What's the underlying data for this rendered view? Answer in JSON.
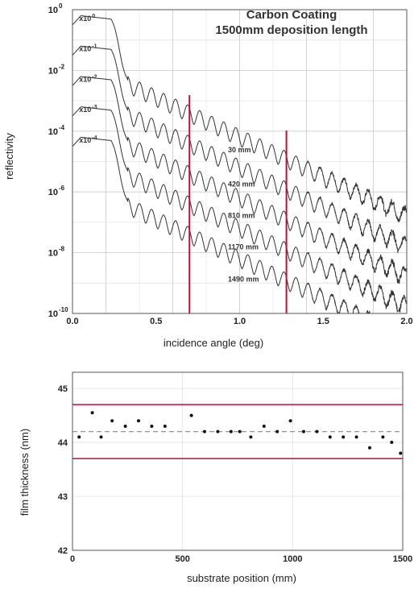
{
  "colors": {
    "curve": "#333333",
    "limit": "#b0163a",
    "mean": "#888888",
    "point": "#111111"
  },
  "chart_data": [
    {
      "type": "line",
      "title": "Carbon Coating",
      "subtitle": "1500mm deposition length",
      "xlabel": "incidence angle (deg)",
      "ylabel": "reflectivity",
      "xlim": [
        0.0,
        2.0
      ],
      "ylim": [
        1e-10,
        1
      ],
      "yscale": "log",
      "xticks": [
        "0.0",
        "0.5",
        "1.0",
        "1.5",
        "2.0"
      ],
      "ytick_mantissa": [
        "10",
        "10",
        "10",
        "10",
        "10",
        "10"
      ],
      "ytick_exponents": [
        "0",
        "-2",
        "-4",
        "-6",
        "-8",
        "-10"
      ],
      "ytick_values": [
        1,
        0.01,
        0.0001,
        1e-06,
        1e-08,
        1e-10
      ],
      "grid": true,
      "vlines_x": [
        0.7,
        1.28
      ],
      "scale_factor_base": "x10",
      "series": [
        {
          "scale_exp": "0",
          "scale_value": 1,
          "name": "30 mm",
          "label_x": 0.93,
          "label_y": 2e-05
        },
        {
          "scale_exp": "-1",
          "scale_value": 0.1,
          "name": "420 mm",
          "label_x": 0.93,
          "label_y": 1.5e-06
        },
        {
          "scale_exp": "-2",
          "scale_value": 0.01,
          "name": "810 mm",
          "label_x": 0.93,
          "label_y": 1.4e-07
        },
        {
          "scale_exp": "-3",
          "scale_value": 0.001,
          "name": "1170 mm",
          "label_x": 0.93,
          "label_y": 1.3e-08
        },
        {
          "scale_exp": "-4",
          "scale_value": 0.0001,
          "name": "1490 mm",
          "label_x": 0.93,
          "label_y": 1.1e-09
        }
      ],
      "curve_shape": {
        "plateau_end_deg": 0.23,
        "edge_end_deg": 0.33,
        "fringe_period_deg": 0.072,
        "decay_decades_per_deg": 2.6
      }
    },
    {
      "type": "scatter",
      "xlabel": "substrate position (mm)",
      "ylabel": "film thickness (nm)",
      "xlim": [
        0,
        1500
      ],
      "ylim": [
        42,
        45.3
      ],
      "xticks": [
        0,
        500,
        1000,
        1500
      ],
      "yticks": [
        42,
        43,
        44,
        45
      ],
      "upper_limit": 44.7,
      "lower_limit": 43.7,
      "mean": 44.2,
      "points": [
        [
          30,
          44.1
        ],
        [
          90,
          44.55
        ],
        [
          130,
          44.1
        ],
        [
          180,
          44.4
        ],
        [
          240,
          44.3
        ],
        [
          300,
          44.4
        ],
        [
          360,
          44.3
        ],
        [
          420,
          44.3
        ],
        [
          540,
          44.5
        ],
        [
          600,
          44.2
        ],
        [
          660,
          44.2
        ],
        [
          720,
          44.2
        ],
        [
          760,
          44.2
        ],
        [
          810,
          44.1
        ],
        [
          870,
          44.3
        ],
        [
          930,
          44.2
        ],
        [
          990,
          44.4
        ],
        [
          1050,
          44.2
        ],
        [
          1110,
          44.2
        ],
        [
          1170,
          44.1
        ],
        [
          1230,
          44.1
        ],
        [
          1290,
          44.1
        ],
        [
          1350,
          43.9
        ],
        [
          1410,
          44.1
        ],
        [
          1450,
          44.0
        ],
        [
          1490,
          43.8
        ]
      ]
    }
  ]
}
